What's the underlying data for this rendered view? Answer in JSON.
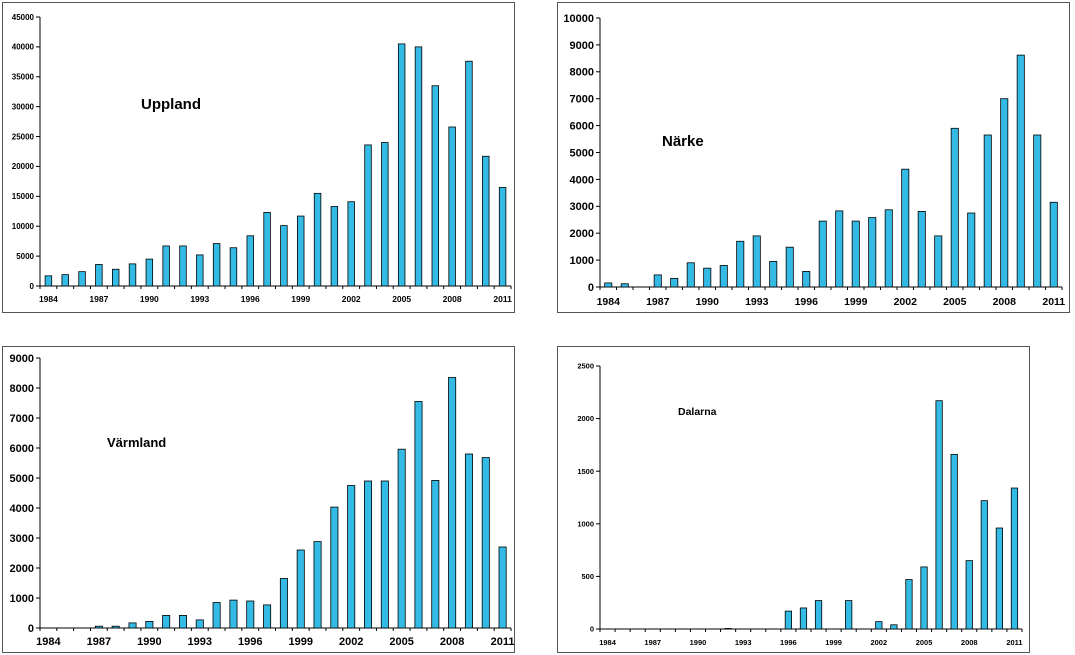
{
  "chart_data": [
    {
      "type": "bar",
      "title": "Uppland",
      "xlabel": "",
      "ylabel": "",
      "ylim": [
        0,
        45000
      ],
      "yticks": [
        0,
        5000,
        10000,
        15000,
        20000,
        25000,
        30000,
        35000,
        40000,
        45000
      ],
      "categories": [
        1984,
        1985,
        1986,
        1987,
        1988,
        1989,
        1990,
        1991,
        1992,
        1993,
        1994,
        1995,
        1996,
        1997,
        1998,
        1999,
        2000,
        2001,
        2002,
        2003,
        2004,
        2005,
        2006,
        2007,
        2008,
        2009,
        2010,
        2011
      ],
      "tick_labels": [
        "1984",
        "",
        "",
        "1987",
        "",
        "",
        "1990",
        "",
        "",
        "1993",
        "",
        "",
        "1996",
        "",
        "",
        "1999",
        "",
        "",
        "2002",
        "",
        "",
        "2005",
        "",
        "",
        "2008",
        "",
        "",
        "2011"
      ],
      "values": [
        1700,
        1900,
        2400,
        3600,
        2800,
        3700,
        4500,
        6700,
        6700,
        5200,
        7100,
        6400,
        8400,
        12300,
        10100,
        11700,
        15500,
        13300,
        14100,
        23600,
        24000,
        40500,
        40000,
        33500,
        26600,
        37600,
        21700,
        16500
      ],
      "bar_color": "#33bbe6",
      "grid": false,
      "legend": "none"
    },
    {
      "type": "bar",
      "title": "Närke",
      "xlabel": "",
      "ylabel": "",
      "ylim": [
        0,
        10000
      ],
      "yticks": [
        0,
        1000,
        2000,
        3000,
        4000,
        5000,
        6000,
        7000,
        8000,
        9000,
        10000
      ],
      "categories": [
        1984,
        1985,
        1986,
        1987,
        1988,
        1989,
        1990,
        1991,
        1992,
        1993,
        1994,
        1995,
        1996,
        1997,
        1998,
        1999,
        2000,
        2001,
        2002,
        2003,
        2004,
        2005,
        2006,
        2007,
        2008,
        2009,
        2010,
        2011
      ],
      "tick_labels": [
        "1984",
        "",
        "",
        "1987",
        "",
        "",
        "1990",
        "",
        "",
        "1993",
        "",
        "",
        "1996",
        "",
        "",
        "1999",
        "",
        "",
        "2002",
        "",
        "",
        "2005",
        "",
        "",
        "2008",
        "",
        "",
        "2011"
      ],
      "values": [
        150,
        120,
        0,
        450,
        320,
        900,
        700,
        800,
        1700,
        1900,
        950,
        1480,
        580,
        2450,
        2830,
        2450,
        2580,
        2870,
        4380,
        2810,
        1900,
        5900,
        2750,
        5650,
        7000,
        8620,
        5650,
        3150
      ],
      "bar_color": "#33bbe6",
      "grid": false,
      "legend": "none"
    },
    {
      "type": "bar",
      "title": "Värmland",
      "xlabel": "",
      "ylabel": "",
      "ylim": [
        0,
        9000
      ],
      "yticks": [
        0,
        1000,
        2000,
        3000,
        4000,
        5000,
        6000,
        7000,
        8000,
        9000
      ],
      "categories": [
        1984,
        1985,
        1986,
        1987,
        1988,
        1989,
        1990,
        1991,
        1992,
        1993,
        1994,
        1995,
        1996,
        1997,
        1998,
        1999,
        2000,
        2001,
        2002,
        2003,
        2004,
        2005,
        2006,
        2007,
        2008,
        2009,
        2010,
        2011
      ],
      "tick_labels": [
        "1984",
        "",
        "",
        "1987",
        "",
        "",
        "1990",
        "",
        "",
        "1993",
        "",
        "",
        "1996",
        "",
        "",
        "1999",
        "",
        "",
        "2002",
        "",
        "",
        "2005",
        "",
        "",
        "2008",
        "",
        "",
        "2011"
      ],
      "values": [
        0,
        0,
        0,
        60,
        60,
        170,
        220,
        420,
        420,
        270,
        850,
        930,
        900,
        770,
        1650,
        2600,
        2880,
        4030,
        4750,
        4900,
        4900,
        5960,
        7550,
        4920,
        8350,
        5800,
        5680,
        2700
      ],
      "bar_color": "#33bbe6",
      "grid": false,
      "legend": "none"
    },
    {
      "type": "bar",
      "title": "Dalarna",
      "xlabel": "",
      "ylabel": "",
      "ylim": [
        0,
        2500
      ],
      "yticks": [
        0,
        500,
        1000,
        1500,
        2000,
        2500
      ],
      "categories": [
        1984,
        1985,
        1986,
        1987,
        1988,
        1989,
        1990,
        1991,
        1992,
        1993,
        1994,
        1995,
        1996,
        1997,
        1998,
        1999,
        2000,
        2001,
        2002,
        2003,
        2004,
        2005,
        2006,
        2007,
        2008,
        2009,
        2010,
        2011
      ],
      "tick_labels": [
        "1984",
        "",
        "",
        "1987",
        "",
        "",
        "1990",
        "",
        "",
        "1993",
        "",
        "",
        "1996",
        "",
        "",
        "1999",
        "",
        "",
        "2002",
        "",
        "",
        "2005",
        "",
        "",
        "2008",
        "",
        "",
        "2011"
      ],
      "values": [
        0,
        0,
        0,
        0,
        0,
        0,
        0,
        0,
        5,
        0,
        0,
        0,
        170,
        200,
        270,
        0,
        270,
        0,
        70,
        40,
        470,
        590,
        2170,
        1660,
        650,
        1220,
        960,
        1340
      ],
      "bar_color": "#33bbe6",
      "grid": false,
      "legend": "none"
    }
  ]
}
